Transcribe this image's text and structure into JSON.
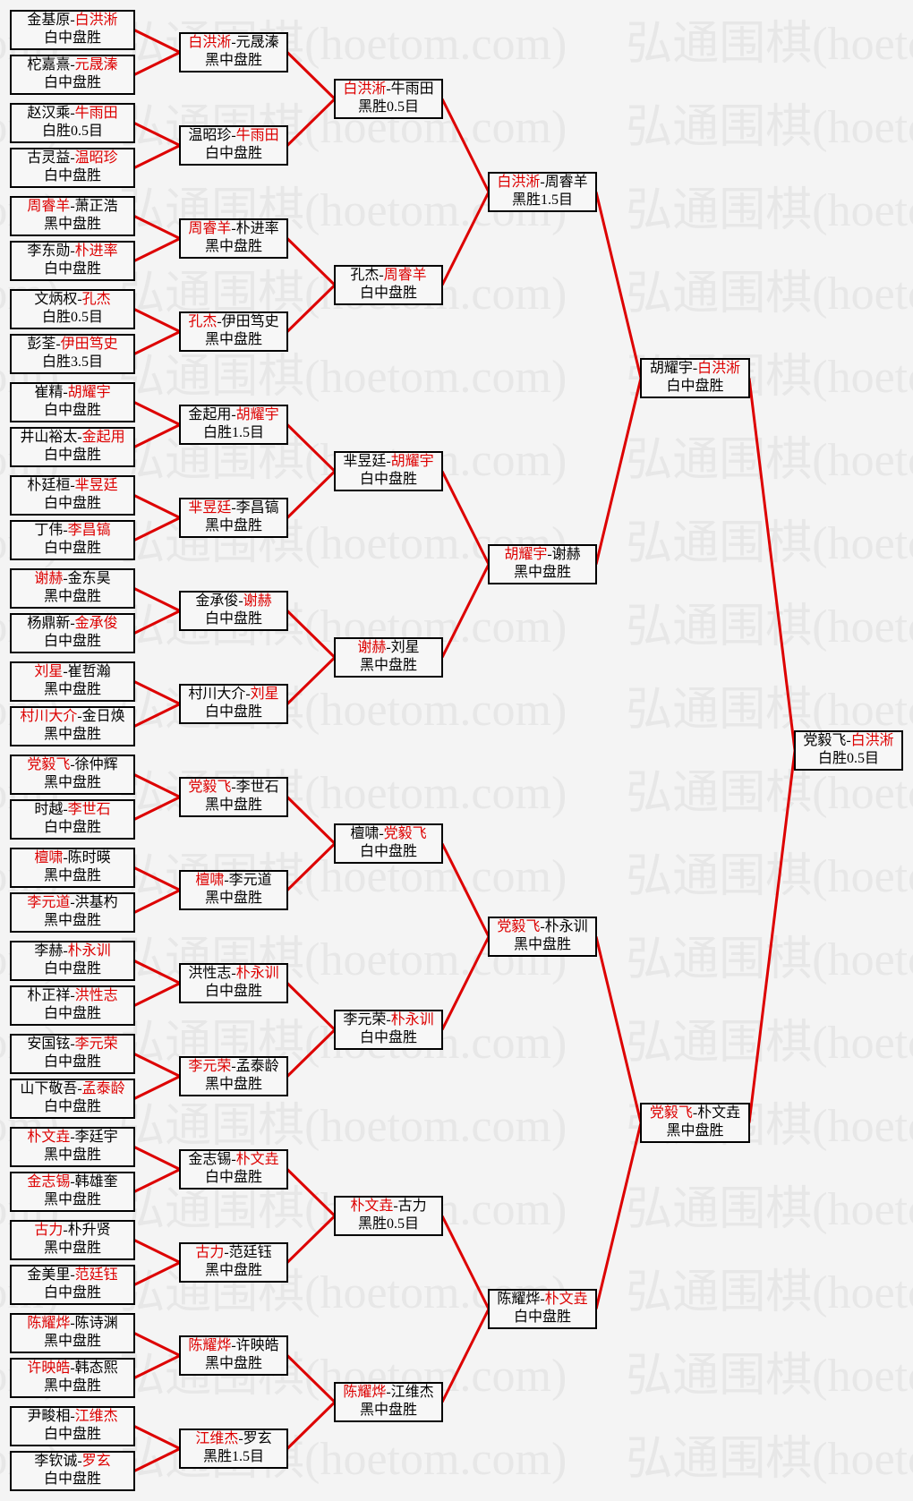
{
  "watermark": {
    "text": "弘通围棋(hoetom.com)",
    "color": "#e7e7e7"
  },
  "colors": {
    "background": "#f4f4f4",
    "box_background": "#f7f7f7",
    "box_border": "#000000",
    "winner_red": "#dd0000",
    "connector_red": "#dd0000",
    "text": "#000000"
  },
  "bracket": {
    "separator": "-",
    "rounds": [
      {
        "matches": [
          {
            "p1": "金基原",
            "p2": "白洪淅",
            "winner": 2,
            "result": "白中盘胜"
          },
          {
            "p1": "柁嘉熹",
            "p2": "元晟溱",
            "winner": 2,
            "result": "白中盘胜"
          },
          {
            "p1": "赵汉乘",
            "p2": "牛雨田",
            "winner": 2,
            "result": "白胜0.5目"
          },
          {
            "p1": "古灵益",
            "p2": "温昭珍",
            "winner": 2,
            "result": "白中盘胜"
          },
          {
            "p1": "周睿羊",
            "p2": "萧正浩",
            "winner": 1,
            "result": "黑中盘胜"
          },
          {
            "p1": "李东勋",
            "p2": "朴进率",
            "winner": 2,
            "result": "白中盘胜"
          },
          {
            "p1": "文炳权",
            "p2": "孔杰",
            "winner": 2,
            "result": "白胜0.5目"
          },
          {
            "p1": "彭荃",
            "p2": "伊田笃史",
            "winner": 2,
            "result": "白胜3.5目"
          },
          {
            "p1": "崔精",
            "p2": "胡耀宇",
            "winner": 2,
            "result": "白中盘胜"
          },
          {
            "p1": "井山裕太",
            "p2": "金起用",
            "winner": 2,
            "result": "白中盘胜"
          },
          {
            "p1": "朴廷桓",
            "p2": "芈昱廷",
            "winner": 2,
            "result": "白中盘胜"
          },
          {
            "p1": "丁伟",
            "p2": "李昌镐",
            "winner": 2,
            "result": "白中盘胜"
          },
          {
            "p1": "谢赫",
            "p2": "金东昊",
            "winner": 1,
            "result": "黑中盘胜"
          },
          {
            "p1": "杨鼎新",
            "p2": "金承俊",
            "winner": 2,
            "result": "白中盘胜"
          },
          {
            "p1": "刘星",
            "p2": "崔哲瀚",
            "winner": 1,
            "result": "黑中盘胜"
          },
          {
            "p1": "村川大介",
            "p2": "金日焕",
            "winner": 1,
            "result": "黑中盘胜"
          },
          {
            "p1": "党毅飞",
            "p2": "徐仲辉",
            "winner": 1,
            "result": "黑中盘胜"
          },
          {
            "p1": "时越",
            "p2": "李世石",
            "winner": 2,
            "result": "白中盘胜"
          },
          {
            "p1": "檀啸",
            "p2": "陈时暎",
            "winner": 1,
            "result": "黑中盘胜"
          },
          {
            "p1": "李元道",
            "p2": "洪基杓",
            "winner": 1,
            "result": "黑中盘胜"
          },
          {
            "p1": "李赫",
            "p2": "朴永训",
            "winner": 2,
            "result": "白中盘胜"
          },
          {
            "p1": "朴正祥",
            "p2": "洪性志",
            "winner": 2,
            "result": "白中盘胜"
          },
          {
            "p1": "安国铉",
            "p2": "李元荣",
            "winner": 2,
            "result": "白中盘胜"
          },
          {
            "p1": "山下敬吾",
            "p2": "孟泰龄",
            "winner": 2,
            "result": "白中盘胜"
          },
          {
            "p1": "朴文垚",
            "p2": "李廷宇",
            "winner": 1,
            "result": "黑中盘胜"
          },
          {
            "p1": "金志锡",
            "p2": "韩雄奎",
            "winner": 1,
            "result": "黑中盘胜"
          },
          {
            "p1": "古力",
            "p2": "朴升贤",
            "winner": 1,
            "result": "黑中盘胜"
          },
          {
            "p1": "金美里",
            "p2": "范廷钰",
            "winner": 2,
            "result": "白中盘胜"
          },
          {
            "p1": "陈耀烨",
            "p2": "陈诗渊",
            "winner": 1,
            "result": "黑中盘胜"
          },
          {
            "p1": "许映皓",
            "p2": "韩态熙",
            "winner": 1,
            "result": "黑中盘胜"
          },
          {
            "p1": "尹畯相",
            "p2": "江维杰",
            "winner": 2,
            "result": "白中盘胜"
          },
          {
            "p1": "李钦诚",
            "p2": "罗玄",
            "winner": 2,
            "result": "白中盘胜"
          }
        ]
      },
      {
        "matches": [
          {
            "p1": "白洪淅",
            "p2": "元晟溱",
            "winner": 1,
            "result": "黑中盘胜"
          },
          {
            "p1": "温昭珍",
            "p2": "牛雨田",
            "winner": 2,
            "result": "白中盘胜"
          },
          {
            "p1": "周睿羊",
            "p2": "朴进率",
            "winner": 1,
            "result": "黑中盘胜"
          },
          {
            "p1": "孔杰",
            "p2": "伊田笃史",
            "winner": 1,
            "result": "黑中盘胜"
          },
          {
            "p1": "金起用",
            "p2": "胡耀宇",
            "winner": 2,
            "result": "白胜1.5目"
          },
          {
            "p1": "芈昱廷",
            "p2": "李昌镐",
            "winner": 1,
            "result": "黑中盘胜"
          },
          {
            "p1": "金承俊",
            "p2": "谢赫",
            "winner": 2,
            "result": "白中盘胜"
          },
          {
            "p1": "村川大介",
            "p2": "刘星",
            "winner": 2,
            "result": "白中盘胜"
          },
          {
            "p1": "党毅飞",
            "p2": "李世石",
            "winner": 1,
            "result": "黑中盘胜"
          },
          {
            "p1": "檀啸",
            "p2": "李元道",
            "winner": 1,
            "result": "黑中盘胜"
          },
          {
            "p1": "洪性志",
            "p2": "朴永训",
            "winner": 2,
            "result": "白中盘胜"
          },
          {
            "p1": "李元荣",
            "p2": "孟泰龄",
            "winner": 1,
            "result": "黑中盘胜"
          },
          {
            "p1": "金志锡",
            "p2": "朴文垚",
            "winner": 2,
            "result": "白中盘胜"
          },
          {
            "p1": "古力",
            "p2": "范廷钰",
            "winner": 1,
            "result": "黑中盘胜"
          },
          {
            "p1": "陈耀烨",
            "p2": "许映皓",
            "winner": 1,
            "result": "黑中盘胜"
          },
          {
            "p1": "江维杰",
            "p2": "罗玄",
            "winner": 1,
            "result": "黑胜1.5目"
          }
        ]
      },
      {
        "matches": [
          {
            "p1": "白洪淅",
            "p2": "牛雨田",
            "winner": 1,
            "result": "黑胜0.5目"
          },
          {
            "p1": "孔杰",
            "p2": "周睿羊",
            "winner": 2,
            "result": "白中盘胜"
          },
          {
            "p1": "芈昱廷",
            "p2": "胡耀宇",
            "winner": 2,
            "result": "白中盘胜"
          },
          {
            "p1": "谢赫",
            "p2": "刘星",
            "winner": 1,
            "result": "黑中盘胜"
          },
          {
            "p1": "檀啸",
            "p2": "党毅飞",
            "winner": 2,
            "result": "白中盘胜"
          },
          {
            "p1": "李元荣",
            "p2": "朴永训",
            "winner": 2,
            "result": "白中盘胜"
          },
          {
            "p1": "朴文垚",
            "p2": "古力",
            "winner": 1,
            "result": "黑胜0.5目"
          },
          {
            "p1": "陈耀烨",
            "p2": "江维杰",
            "winner": 1,
            "result": "黑中盘胜"
          }
        ]
      },
      {
        "matches": [
          {
            "p1": "白洪淅",
            "p2": "周睿羊",
            "winner": 1,
            "result": "黑胜1.5目"
          },
          {
            "p1": "胡耀宇",
            "p2": "谢赫",
            "winner": 1,
            "result": "黑中盘胜"
          },
          {
            "p1": "党毅飞",
            "p2": "朴永训",
            "winner": 1,
            "result": "黑中盘胜"
          },
          {
            "p1": "陈耀烨",
            "p2": "朴文垚",
            "winner": 2,
            "result": "白中盘胜"
          }
        ]
      },
      {
        "matches": [
          {
            "p1": "胡耀宇",
            "p2": "白洪淅",
            "winner": 2,
            "result": "白中盘胜"
          },
          {
            "p1": "党毅飞",
            "p2": "朴文垚",
            "winner": 1,
            "result": "黑中盘胜"
          }
        ]
      },
      {
        "matches": [
          {
            "p1": "党毅飞",
            "p2": "白洪淅",
            "winner": 2,
            "result": "白胜0.5目"
          }
        ]
      }
    ]
  }
}
